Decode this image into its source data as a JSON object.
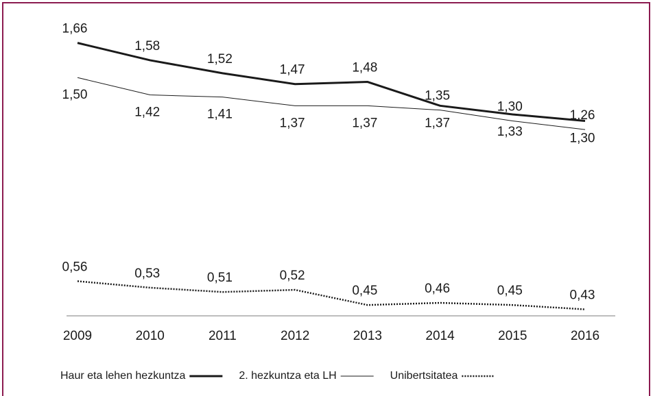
{
  "chart_data": {
    "type": "line",
    "categories": [
      "2009",
      "2010",
      "2011",
      "2012",
      "2013",
      "2014",
      "2015",
      "2016"
    ],
    "series": [
      {
        "name": "Haur eta lehen hezkuntza",
        "color": "#1a1a1a",
        "style": "thick",
        "values": [
          1.66,
          1.58,
          1.52,
          1.47,
          1.48,
          1.37,
          1.33,
          1.3
        ],
        "value_labels": [
          "1,66",
          "1,58",
          "1,52",
          "1,47",
          "1,48",
          "1,37",
          "1,33",
          "1,30"
        ]
      },
      {
        "name": "2. hezkuntza eta LH",
        "color": "#1a1a1a",
        "style": "thin",
        "values": [
          1.5,
          1.42,
          1.41,
          1.37,
          1.37,
          1.35,
          1.3,
          1.26
        ],
        "value_labels": [
          "1,50",
          "1,42",
          "1,41",
          "1,37",
          "1,37",
          "1,35",
          "1,30",
          "1,26"
        ]
      },
      {
        "name": "Unibertsitatea",
        "color": "#1a1a1a",
        "style": "dotted",
        "values": [
          0.56,
          0.53,
          0.51,
          0.52,
          0.45,
          0.46,
          0.45,
          0.43
        ],
        "value_labels": [
          "0,56",
          "0,53",
          "0,51",
          "0,52",
          "0,45",
          "0,46",
          "0,45",
          "0,43"
        ]
      }
    ],
    "ylim": [
      0.4,
      1.7
    ]
  }
}
